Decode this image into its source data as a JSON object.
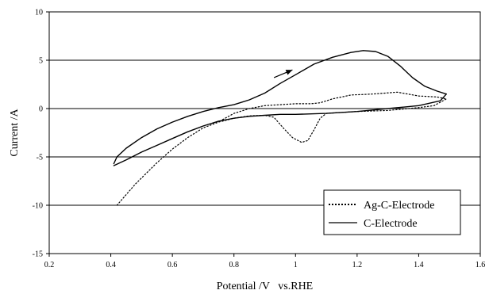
{
  "chart_data": {
    "type": "line",
    "xlabel": "Potential /V   vs.RHE",
    "ylabel": "Current /A",
    "xlim": [
      0.2,
      1.6
    ],
    "ylim": [
      -15,
      10
    ],
    "xticks": [
      0.2,
      0.4,
      0.6,
      0.8,
      1.0,
      1.2,
      1.4,
      1.6
    ],
    "xtick_labels": [
      "0.2",
      "0.4",
      "0.6",
      "0.8",
      "1",
      "1.2",
      "1.4",
      "1.6"
    ],
    "yticks": [
      -15,
      -10,
      -5,
      0,
      5,
      10
    ],
    "ytick_labels": [
      "-15",
      "-10",
      "-5",
      "0",
      "5",
      "10"
    ],
    "grid": "horizontal",
    "legend_position": "bottom-right",
    "series": [
      {
        "name": "Ag-C-Electrode",
        "style": "dotted",
        "color": "#000000",
        "points": [
          [
            0.42,
            -10.0
          ],
          [
            0.48,
            -7.8
          ],
          [
            0.55,
            -5.6
          ],
          [
            0.6,
            -4.2
          ],
          [
            0.65,
            -3.0
          ],
          [
            0.7,
            -2.0
          ],
          [
            0.75,
            -1.4
          ],
          [
            0.8,
            -1.0
          ],
          [
            0.85,
            -0.75
          ],
          [
            0.9,
            -0.7
          ],
          [
            0.93,
            -0.9
          ],
          [
            0.96,
            -2.0
          ],
          [
            0.99,
            -3.0
          ],
          [
            1.02,
            -3.5
          ],
          [
            1.04,
            -3.3
          ],
          [
            1.06,
            -2.2
          ],
          [
            1.08,
            -1.0
          ],
          [
            1.1,
            -0.5
          ],
          [
            1.2,
            -0.3
          ],
          [
            1.3,
            -0.2
          ],
          [
            1.4,
            0.1
          ],
          [
            1.45,
            0.3
          ],
          [
            1.49,
            1.0
          ],
          [
            1.46,
            1.2
          ],
          [
            1.4,
            1.3
          ],
          [
            1.33,
            1.7
          ],
          [
            1.25,
            1.5
          ],
          [
            1.18,
            1.4
          ],
          [
            1.12,
            1.0
          ],
          [
            1.08,
            0.6
          ],
          [
            1.05,
            0.5
          ],
          [
            1.0,
            0.5
          ],
          [
            0.95,
            0.4
          ],
          [
            0.9,
            0.3
          ],
          [
            0.85,
            0.0
          ],
          [
            0.8,
            -0.5
          ],
          [
            0.76,
            -1.2
          ]
        ]
      },
      {
        "name": "C-Electrode",
        "style": "solid",
        "color": "#000000",
        "points": [
          [
            0.41,
            -5.9
          ],
          [
            0.45,
            -5.3
          ],
          [
            0.5,
            -4.5
          ],
          [
            0.55,
            -3.8
          ],
          [
            0.6,
            -3.1
          ],
          [
            0.65,
            -2.4
          ],
          [
            0.7,
            -1.8
          ],
          [
            0.75,
            -1.3
          ],
          [
            0.8,
            -1.0
          ],
          [
            0.85,
            -0.8
          ],
          [
            0.9,
            -0.7
          ],
          [
            0.95,
            -0.6
          ],
          [
            1.0,
            -0.6
          ],
          [
            1.1,
            -0.5
          ],
          [
            1.2,
            -0.3
          ],
          [
            1.3,
            0.0
          ],
          [
            1.4,
            0.3
          ],
          [
            1.47,
            0.8
          ],
          [
            1.49,
            1.5
          ],
          [
            1.46,
            1.8
          ],
          [
            1.42,
            2.3
          ],
          [
            1.38,
            3.2
          ],
          [
            1.34,
            4.4
          ],
          [
            1.3,
            5.4
          ],
          [
            1.26,
            5.9
          ],
          [
            1.22,
            6.0
          ],
          [
            1.18,
            5.8
          ],
          [
            1.12,
            5.3
          ],
          [
            1.06,
            4.6
          ],
          [
            1.0,
            3.5
          ],
          [
            0.95,
            2.6
          ],
          [
            0.9,
            1.6
          ],
          [
            0.85,
            0.9
          ],
          [
            0.8,
            0.4
          ],
          [
            0.75,
            0.1
          ],
          [
            0.7,
            -0.3
          ],
          [
            0.65,
            -0.8
          ],
          [
            0.6,
            -1.4
          ],
          [
            0.55,
            -2.1
          ],
          [
            0.5,
            -3.0
          ],
          [
            0.45,
            -4.1
          ],
          [
            0.42,
            -5.0
          ],
          [
            0.41,
            -5.7
          ]
        ]
      }
    ],
    "annotations": [
      {
        "type": "arrow",
        "from": [
          0.93,
          3.2
        ],
        "to": [
          0.99,
          4.0
        ]
      }
    ]
  }
}
